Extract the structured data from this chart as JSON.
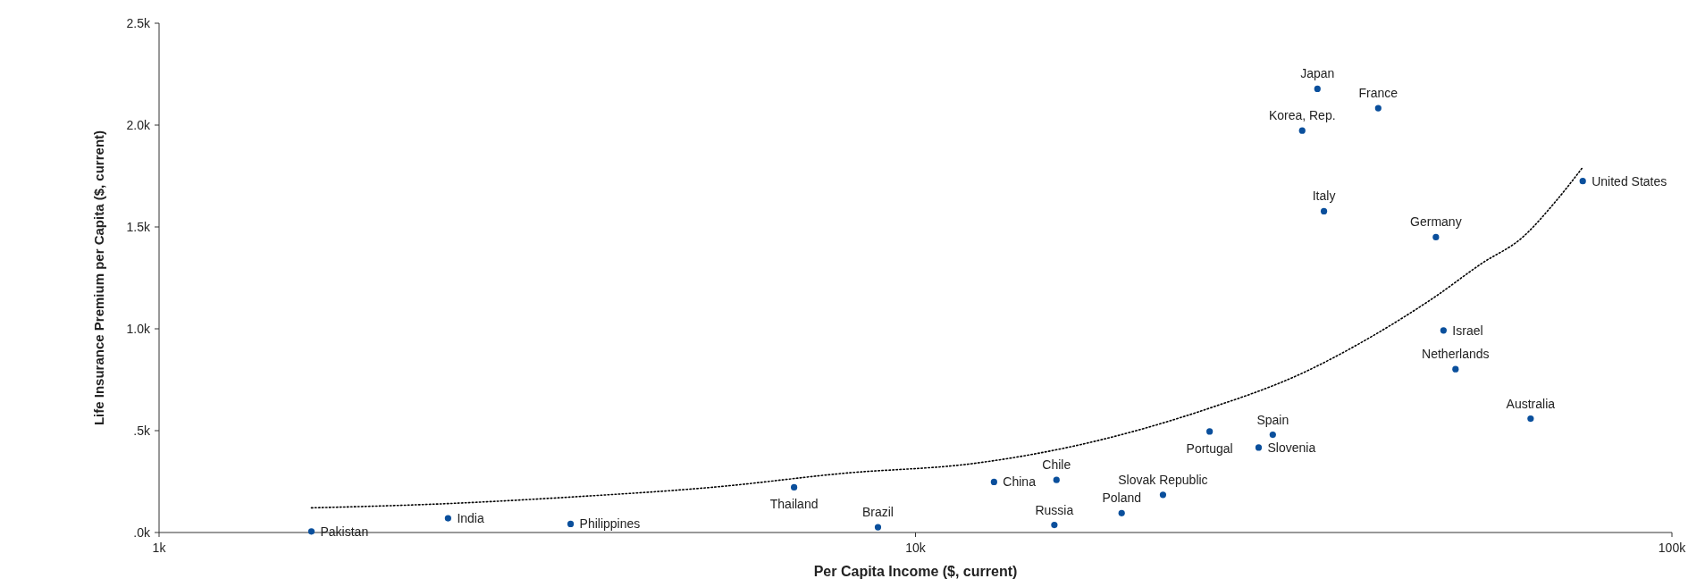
{
  "chart_data": {
    "type": "scatter",
    "xlabel": "Per Capita Income ($, current)",
    "ylabel": "Life Insurance Premium per Capita ($, current)",
    "log": "x",
    "xlim": [
      1000,
      100000
    ],
    "xticks": [
      {
        "value": 1000,
        "label": "1k"
      },
      {
        "value": 10000,
        "label": "10k"
      },
      {
        "value": 100000,
        "label": "100k"
      }
    ],
    "ylim": [
      0,
      2500
    ],
    "yticks": [
      {
        "value": 0,
        "label": ".0k"
      },
      {
        "value": 500,
        "label": ".5k"
      },
      {
        "value": 1000,
        "label": "1.0k"
      },
      {
        "value": 1500,
        "label": "1.5k"
      },
      {
        "value": 2000,
        "label": "2.0k"
      },
      {
        "value": 2500,
        "label": "2.5k"
      }
    ],
    "grid": false,
    "marker": "circle",
    "series": [
      {
        "color": "#0a4f9c",
        "x": [
          1590,
          2410,
          3500,
          6910,
          8920,
          12700,
          15360,
          15260,
          18730,
          21240,
          24480,
          29670,
          28420,
          32450,
          33990,
          34670,
          40900,
          48750,
          49890,
          51750,
          65040,
          76230
        ],
        "values": [
          5,
          70,
          42,
          222,
          26,
          248,
          258,
          37,
          95,
          185,
          496,
          480,
          417,
          1973,
          2178,
          1577,
          2083,
          1450,
          992,
          802,
          559,
          1725
        ],
        "value_labels": [
          "Pakistan",
          "India",
          "Philippines",
          "Thailand",
          "Brazil",
          "China",
          "Chile",
          "Russia",
          "Poland",
          "Slovak Republic",
          "Portugal",
          "Spain",
          "Slovenia",
          "Korea, Rep.",
          "Japan",
          "Italy",
          "France",
          "Germany",
          "Israel",
          "Netherlands",
          "Australia",
          "United States"
        ]
      },
      {
        "type": "line",
        "color": "#000000",
        "line_style": "dotted",
        "marker": "none",
        "x": [
          1590,
          2410,
          3500,
          5500,
          8000,
          12000,
          16000,
          24000,
          32800,
          40000,
          48750,
          56000,
          63500,
          70000,
          76230
        ],
        "values": [
          121,
          142,
          174,
          225,
          290,
          340,
          420,
          600,
          790,
          960,
          1160,
          1320,
          1450,
          1620,
          1793
        ]
      }
    ]
  }
}
